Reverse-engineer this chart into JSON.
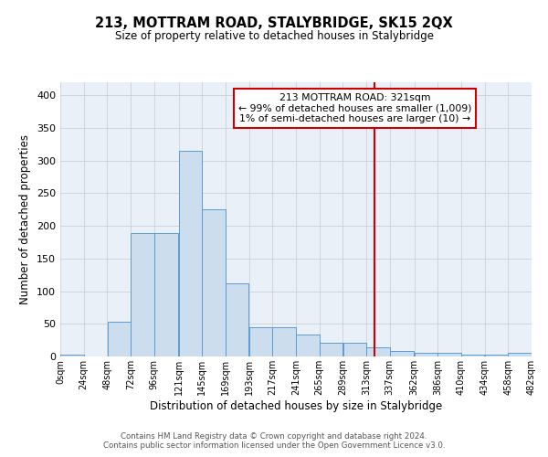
{
  "title": "213, MOTTRAM ROAD, STALYBRIDGE, SK15 2QX",
  "subtitle": "Size of property relative to detached houses in Stalybridge",
  "xlabel": "Distribution of detached houses by size in Stalybridge",
  "ylabel": "Number of detached properties",
  "bar_left_edges": [
    0,
    24,
    48,
    72,
    96,
    121,
    145,
    169,
    193,
    217,
    241,
    265,
    289,
    313,
    337,
    362,
    386,
    410,
    434,
    458
  ],
  "bar_widths": [
    24,
    24,
    24,
    24,
    25,
    24,
    24,
    24,
    24,
    24,
    24,
    24,
    24,
    24,
    25,
    24,
    24,
    24,
    24,
    24
  ],
  "bar_heights": [
    3,
    0,
    53,
    189,
    189,
    315,
    225,
    112,
    45,
    45,
    33,
    21,
    21,
    14,
    8,
    5,
    5,
    3,
    3,
    5
  ],
  "bar_color": "#ccdded",
  "bar_edgecolor": "#5b9bd5",
  "background_color": "#eaf0f8",
  "grid_color": "#c8c8d0",
  "vline_x": 321,
  "vline_color": "#cc0000",
  "annotation_text": "213 MOTTRAM ROAD: 321sqm\n← 99% of detached houses are smaller (1,009)\n1% of semi-detached houses are larger (10) →",
  "annotation_box_edgecolor": "#cc0000",
  "footer_line1": "Contains HM Land Registry data © Crown copyright and database right 2024.",
  "footer_line2": "Contains public sector information licensed under the Open Government Licence v3.0.",
  "ylim": [
    0,
    420
  ],
  "xlim": [
    0,
    482
  ],
  "yticks": [
    0,
    50,
    100,
    150,
    200,
    250,
    300,
    350,
    400
  ],
  "tick_labels": [
    "0sqm",
    "24sqm",
    "48sqm",
    "72sqm",
    "96sqm",
    "121sqm",
    "145sqm",
    "169sqm",
    "193sqm",
    "217sqm",
    "241sqm",
    "265sqm",
    "289sqm",
    "313sqm",
    "337sqm",
    "362sqm",
    "386sqm",
    "410sqm",
    "434sqm",
    "458sqm",
    "482sqm"
  ],
  "tick_positions": [
    0,
    24,
    48,
    72,
    96,
    121,
    145,
    169,
    193,
    217,
    241,
    265,
    289,
    313,
    337,
    362,
    386,
    410,
    434,
    458,
    482
  ]
}
